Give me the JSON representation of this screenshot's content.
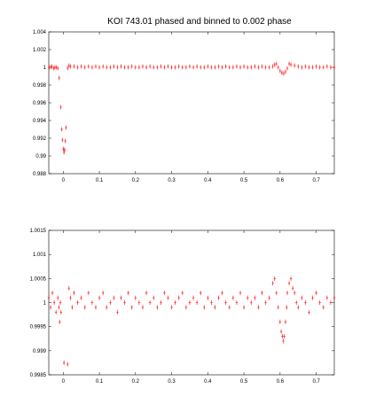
{
  "chart_data": [
    {
      "type": "scatter",
      "title": "KOI 743.01 phased and binned to 0.002 phase",
      "xlim": [
        -0.04,
        0.75
      ],
      "ylim": [
        0.988,
        1.004
      ],
      "xticks": [
        0,
        0.1,
        0.2,
        0.3,
        0.4,
        0.5,
        0.6,
        0.7
      ],
      "xtick_labels": [
        "0",
        "0.1",
        "0.2",
        "0.3",
        "0.4",
        "0.5",
        "0.6",
        "0.7"
      ],
      "yticks": [
        0.988,
        0.99,
        0.992,
        0.994,
        0.996,
        0.998,
        1,
        1.002,
        1.004
      ],
      "ytick_labels": [
        "0.988",
        "0.99",
        "0.992",
        "0.994",
        "0.996",
        "0.998",
        "1",
        "1.002",
        "1.004"
      ],
      "grid": false,
      "error_bars": true,
      "series": [
        {
          "color": "#ff0000",
          "x": [
            -0.039,
            -0.035,
            -0.031,
            -0.027,
            -0.023,
            -0.019,
            -0.015,
            -0.011,
            -0.007,
            -0.004,
            -0.002,
            0.0,
            0.002,
            0.004,
            0.006,
            0.008,
            0.012,
            0.016,
            0.02,
            0.03,
            0.04,
            0.05,
            0.06,
            0.07,
            0.08,
            0.09,
            0.1,
            0.11,
            0.12,
            0.13,
            0.14,
            0.15,
            0.16,
            0.17,
            0.18,
            0.19,
            0.2,
            0.21,
            0.22,
            0.23,
            0.24,
            0.25,
            0.26,
            0.27,
            0.28,
            0.29,
            0.3,
            0.31,
            0.32,
            0.33,
            0.34,
            0.35,
            0.36,
            0.37,
            0.38,
            0.39,
            0.4,
            0.41,
            0.42,
            0.43,
            0.44,
            0.45,
            0.46,
            0.47,
            0.48,
            0.49,
            0.5,
            0.51,
            0.52,
            0.53,
            0.54,
            0.55,
            0.56,
            0.57,
            0.58,
            0.585,
            0.59,
            0.595,
            0.6,
            0.605,
            0.61,
            0.615,
            0.62,
            0.625,
            0.63,
            0.64,
            0.65,
            0.66,
            0.67,
            0.68,
            0.69,
            0.7,
            0.71,
            0.72,
            0.73,
            0.74,
            0.75
          ],
          "y": [
            1.0,
            1.0,
            1.0001,
            0.9999,
            1.0,
            1.0,
            0.9999,
            0.9988,
            0.9955,
            0.993,
            0.9918,
            0.9908,
            0.9904,
            0.9907,
            0.9917,
            0.9932,
            0.9999,
            1.0002,
            1.0001,
            1.0001,
            1.0,
            1.0001,
            1.0,
            1.0001,
            1.0,
            1.0001,
            1.0,
            1.0001,
            1.0,
            1.0,
            1.0001,
            1.0,
            1.0001,
            1.0,
            1.0,
            1.0001,
            1.0,
            1.0,
            1.0001,
            1.0,
            1.0001,
            1.0,
            1.0,
            1.0001,
            1.0,
            1.0001,
            1.0,
            1.0,
            1.0001,
            1.0,
            1.0,
            1.0001,
            1.0,
            1.0001,
            1.0,
            1.0,
            1.0001,
            1.0,
            1.0,
            1.0001,
            1.0,
            1.0001,
            1.0,
            1.0,
            1.0001,
            1.0,
            1.0001,
            1.0,
            1.0,
            1.0001,
            1.0,
            1.0001,
            1.0,
            1.0,
            1.0001,
            1.0003,
            1.0004,
            1.0,
            0.9996,
            0.9994,
            0.9993,
            0.9995,
            0.9999,
            1.0004,
            1.0003,
            1.0002,
            1.0001,
            1.0,
            1.0001,
            1.0,
            1.0,
            1.0001,
            1.0,
            1.0,
            1.0001,
            1.0,
            1.0
          ]
        }
      ]
    },
    {
      "type": "scatter",
      "xlim": [
        -0.04,
        0.75
      ],
      "ylim": [
        0.9985,
        1.0015
      ],
      "xticks": [
        0,
        0.1,
        0.2,
        0.3,
        0.4,
        0.5,
        0.6,
        0.7
      ],
      "xtick_labels": [
        "0",
        "0.1",
        "0.2",
        "0.3",
        "0.4",
        "0.5",
        "0.6",
        "0.7"
      ],
      "yticks": [
        0.9985,
        0.999,
        0.9995,
        1,
        1.0005,
        1.001,
        1.0015
      ],
      "ytick_labels": [
        "0.9985",
        "0.999",
        "0.9995",
        "1",
        "1.0005",
        "1.001",
        "1.0015"
      ],
      "grid": false,
      "error_bars": true,
      "series": [
        {
          "color": "#ff0000",
          "x": [
            -0.04,
            -0.035,
            -0.03,
            -0.025,
            -0.02,
            -0.015,
            -0.012,
            -0.01,
            -0.008,
            -0.006,
            0.002,
            0.012,
            0.016,
            0.02,
            0.025,
            0.03,
            0.04,
            0.05,
            0.06,
            0.07,
            0.08,
            0.09,
            0.1,
            0.11,
            0.12,
            0.13,
            0.14,
            0.15,
            0.16,
            0.17,
            0.18,
            0.19,
            0.2,
            0.21,
            0.22,
            0.23,
            0.24,
            0.25,
            0.26,
            0.27,
            0.28,
            0.29,
            0.3,
            0.31,
            0.32,
            0.33,
            0.34,
            0.35,
            0.36,
            0.37,
            0.38,
            0.39,
            0.4,
            0.41,
            0.42,
            0.43,
            0.44,
            0.45,
            0.46,
            0.47,
            0.48,
            0.49,
            0.5,
            0.51,
            0.52,
            0.53,
            0.54,
            0.55,
            0.56,
            0.57,
            0.58,
            0.585,
            0.59,
            0.595,
            0.6,
            0.603,
            0.606,
            0.609,
            0.612,
            0.615,
            0.618,
            0.62,
            0.625,
            0.63,
            0.635,
            0.64,
            0.645,
            0.65,
            0.66,
            0.67,
            0.68,
            0.69,
            0.7,
            0.71,
            0.72,
            0.73,
            0.74,
            0.75
          ],
          "y": [
            1.0001,
            0.9999,
            1.0002,
            1.0,
            0.9998,
            1.0001,
            0.9999,
            0.9996,
            1.0,
            0.9998,
            0.99875,
            0.99872,
            1.0003,
            1.0001,
            0.9999,
            1.0002,
            1.0,
            1.0001,
            0.9999,
            1.0002,
            1.0,
            0.9999,
            1.0001,
            1.0002,
            0.9999,
            1.0,
            1.0001,
            0.9998,
            1.0001,
            1.0,
            1.0002,
            0.9999,
            1.0001,
            1.0,
            0.9999,
            1.0002,
            1.0,
            1.0001,
            0.9999,
            1.0,
            1.0002,
            1.0001,
            0.9999,
            1.0,
            1.0001,
            1.0002,
            0.9999,
            1.0,
            1.0001,
            1.0,
            1.0002,
            0.9999,
            1.0001,
            1.0,
            0.9999,
            1.0001,
            1.0002,
            1.0,
            0.9999,
            1.0001,
            1.0,
            1.0002,
            0.9999,
            1.0001,
            1.0,
            1.0001,
            0.9999,
            1.0002,
            1.0,
            1.0001,
            1.0004,
            1.0005,
            1.0002,
            0.9999,
            0.9996,
            0.9994,
            0.9993,
            0.9992,
            0.9993,
            0.9996,
            0.9999,
            1.0002,
            1.0004,
            1.0005,
            1.0003,
            1.0002,
            1.0,
            0.9999,
            1.0001,
            1.0,
            0.9998,
            1.0001,
            1.0002,
            1.0,
            0.9999,
            1.0001,
            1.0,
            1.0001
          ]
        }
      ]
    }
  ]
}
